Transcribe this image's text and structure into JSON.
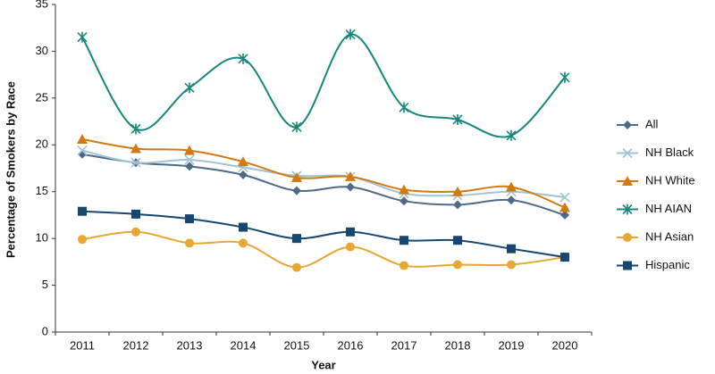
{
  "chart_data": {
    "type": "line",
    "x_label": "Year",
    "y_label": "Percentage of Smokers by Race",
    "categories": [
      "2011",
      "2012",
      "2013",
      "2014",
      "2015",
      "2016",
      "2017",
      "2018",
      "2019",
      "2020"
    ],
    "ylim": [
      0,
      35
    ],
    "yticks": [
      0,
      5,
      10,
      15,
      20,
      25,
      30,
      35
    ],
    "smooth": true,
    "legend": "right",
    "series": [
      {
        "name": "All",
        "color": "#4d6a88",
        "marker": "diamond",
        "values": [
          19.0,
          18.1,
          17.7,
          16.8,
          15.1,
          15.5,
          14.0,
          13.6,
          14.1,
          12.5
        ]
      },
      {
        "name": "NH Black",
        "color": "#9fc3d6",
        "marker": "x",
        "values": [
          19.4,
          18.1,
          18.4,
          17.6,
          16.7,
          16.6,
          14.8,
          14.6,
          15.0,
          14.4
        ]
      },
      {
        "name": "NH White",
        "color": "#d27a12",
        "marker": "triangle",
        "values": [
          20.6,
          19.6,
          19.4,
          18.2,
          16.5,
          16.6,
          15.2,
          15.0,
          15.5,
          13.3
        ]
      },
      {
        "name": "NH AIAN",
        "color": "#17877e",
        "marker": "asterisk",
        "values": [
          31.5,
          21.7,
          26.1,
          29.2,
          21.9,
          31.8,
          24.0,
          22.7,
          21.0,
          27.2
        ]
      },
      {
        "name": "NH Asian",
        "color": "#e9a632",
        "marker": "circle",
        "values": [
          9.9,
          10.7,
          9.5,
          9.5,
          6.9,
          9.1,
          7.1,
          7.2,
          7.2,
          8.0
        ]
      },
      {
        "name": "Hispanic",
        "color": "#17466e",
        "marker": "square",
        "values": [
          12.9,
          12.6,
          12.1,
          11.2,
          10.0,
          10.7,
          9.8,
          9.8,
          8.9,
          8.0
        ]
      }
    ]
  }
}
